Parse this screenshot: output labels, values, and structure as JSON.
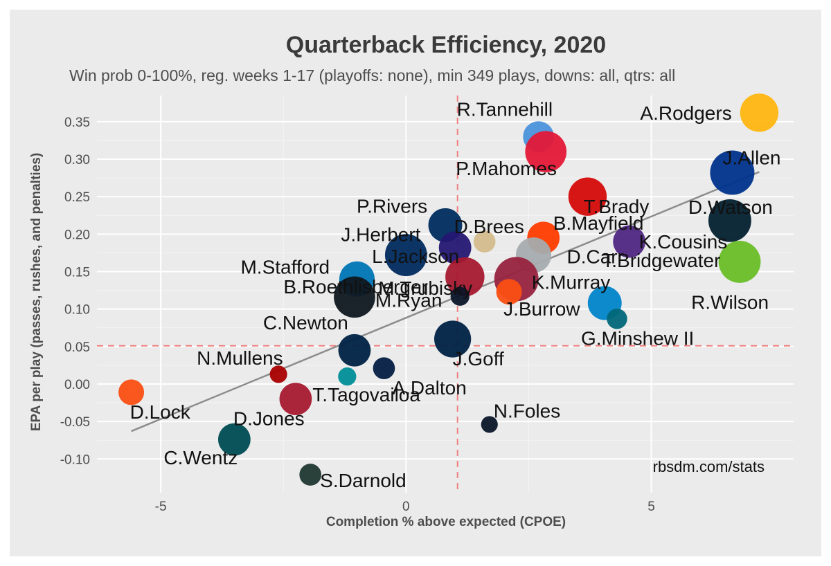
{
  "chart_data": {
    "type": "scatter",
    "title": "Quarterback Efficiency, 2020",
    "subtitle": "Win prob 0-100%, reg. weeks 1-17 (playoffs: none), min 349 plays, downs: all, qtrs: all",
    "xlabel": "Completion % above expected (CPOE)",
    "ylabel": "EPA per play (passes, rushes, and penalties)",
    "xlim": [
      -6.3,
      7.9
    ],
    "ylim": [
      -0.145,
      0.385
    ],
    "x_ticks": [
      -5,
      0,
      5
    ],
    "x_tick_labels": [
      "-5",
      "0",
      "5"
    ],
    "y_ticks": [
      -0.1,
      -0.05,
      0,
      0.05,
      0.1,
      0.15,
      0.2,
      0.25,
      0.3,
      0.35
    ],
    "y_tick_labels": [
      "-0.10",
      "-0.05",
      "0.00",
      "0.05",
      "0.10",
      "0.15",
      "0.20",
      "0.25",
      "0.30",
      "0.35"
    ],
    "reference_lines": {
      "x_mean": 1.05,
      "y_mean": 0.051
    },
    "trend_line": {
      "x": [
        -5.6,
        7.2
      ],
      "y": [
        -0.063,
        0.283
      ]
    },
    "credit": "rbsdm.com/stats",
    "grid": true,
    "points": [
      {
        "name": "A.Rodgers",
        "x": 7.2,
        "y": 0.362,
        "plays": 640,
        "color": "#FFB612"
      },
      {
        "name": "J.Allen",
        "x": 6.65,
        "y": 0.282,
        "plays": 720,
        "color": "#00338D"
      },
      {
        "name": "D.Watson",
        "x": 6.6,
        "y": 0.218,
        "plays": 700,
        "color": "#03202F"
      },
      {
        "name": "R.Wilson",
        "x": 6.8,
        "y": 0.163,
        "plays": 690,
        "color": "#69BE28"
      },
      {
        "name": "R.Tannehill",
        "x": 2.7,
        "y": 0.33,
        "plays": 540,
        "color": "#4B92DB"
      },
      {
        "name": "P.Mahomes",
        "x": 2.85,
        "y": 0.31,
        "plays": 680,
        "color": "#E31837"
      },
      {
        "name": "T.Brady",
        "x": 3.7,
        "y": 0.25,
        "plays": 640,
        "color": "#D50A0A"
      },
      {
        "name": "B.Mayfield",
        "x": 2.8,
        "y": 0.195,
        "plays": 560,
        "color": "#FF3C00"
      },
      {
        "name": "D.Carr",
        "x": 2.6,
        "y": 0.172,
        "plays": 600,
        "color": "#A5ACAF"
      },
      {
        "name": "K.Cousins",
        "x": 4.55,
        "y": 0.19,
        "plays": 560,
        "color": "#4F2683"
      },
      {
        "name": "T.Bridgewater",
        "x": 4.05,
        "y": 0.108,
        "plays": 580,
        "color": "#0085CA"
      },
      {
        "name": "G.Minshew II",
        "x": 4.3,
        "y": 0.087,
        "plays": 400,
        "color": "#006778"
      },
      {
        "name": "K.Murray",
        "x": 2.25,
        "y": 0.14,
        "plays": 720,
        "color": "#97233F"
      },
      {
        "name": "J.Burrow",
        "x": 2.1,
        "y": 0.123,
        "plays": 470,
        "color": "#FB4F14"
      },
      {
        "name": "P.Rivers",
        "x": 0.8,
        "y": 0.212,
        "plays": 580,
        "color": "#002C5F"
      },
      {
        "name": "D.Brees",
        "x": 1.6,
        "y": 0.19,
        "plays": 420,
        "color": "#D3BC8D"
      },
      {
        "name": "J.Herbert",
        "x": 0.0,
        "y": 0.172,
        "plays": 690,
        "color": "#002A5E"
      },
      {
        "name": "L.Jackson",
        "x": 1.0,
        "y": 0.182,
        "plays": 560,
        "color": "#241773"
      },
      {
        "name": "B.Roethlisberger",
        "x": 1.2,
        "y": 0.143,
        "plays": 650,
        "color": "#A71930"
      },
      {
        "name": "M.Stafford",
        "x": -1.0,
        "y": 0.14,
        "plays": 600,
        "color": "#0076B6"
      },
      {
        "name": "M.Ryan",
        "x": -1.05,
        "y": 0.116,
        "plays": 680,
        "color": "#101820"
      },
      {
        "name": "M.Trubisky",
        "x": 1.1,
        "y": 0.117,
        "plays": 380,
        "color": "#0B162A"
      },
      {
        "name": "J.Goff",
        "x": 0.95,
        "y": 0.06,
        "plays": 620,
        "color": "#002244"
      },
      {
        "name": "C.Newton",
        "x": -1.05,
        "y": 0.045,
        "plays": 560,
        "color": "#002244"
      },
      {
        "name": "A.Dalton",
        "x": -0.45,
        "y": 0.021,
        "plays": 420,
        "color": "#041E42"
      },
      {
        "name": "N.Mullens",
        "x": -2.6,
        "y": 0.013,
        "plays": 360,
        "color": "#AA0000"
      },
      {
        "name": "T.Tagovailoa",
        "x": -1.2,
        "y": 0.01,
        "plays": 370,
        "color": "#008E97"
      },
      {
        "name": "D.Jones",
        "x": -2.25,
        "y": -0.02,
        "plays": 560,
        "color": "#A71930"
      },
      {
        "name": "D.Lock",
        "x": -5.6,
        "y": -0.011,
        "plays": 470,
        "color": "#FB4F14"
      },
      {
        "name": "C.Wentz",
        "x": -3.5,
        "y": -0.074,
        "plays": 560,
        "color": "#004C54"
      },
      {
        "name": "N.Foles",
        "x": 1.7,
        "y": -0.054,
        "plays": 350,
        "color": "#0B162A"
      },
      {
        "name": "S.Darnold",
        "x": -1.95,
        "y": -0.121,
        "plays": 420,
        "color": "#203731"
      }
    ]
  },
  "label_order": [
    "A.Rodgers",
    "J.Allen",
    "D.Watson",
    "R.Wilson",
    "R.Tannehill",
    "P.Mahomes",
    "T.Brady",
    "B.Mayfield",
    "D.Carr",
    "K.Cousins",
    "T.Bridgewater",
    "G.Minshew II",
    "K.Murray",
    "J.Burrow",
    "P.Rivers",
    "D.Brees",
    "J.Herbert",
    "L.Jackson",
    "B.Roethlisberger",
    "M.Stafford",
    "M.Ryan",
    "M.Trubisky",
    "J.Goff",
    "C.Newton",
    "A.Dalton",
    "N.Mullens",
    "T.Tagovailoa",
    "D.Jones",
    "D.Lock",
    "C.Wentz",
    "N.Foles",
    "S.Darnold"
  ]
}
